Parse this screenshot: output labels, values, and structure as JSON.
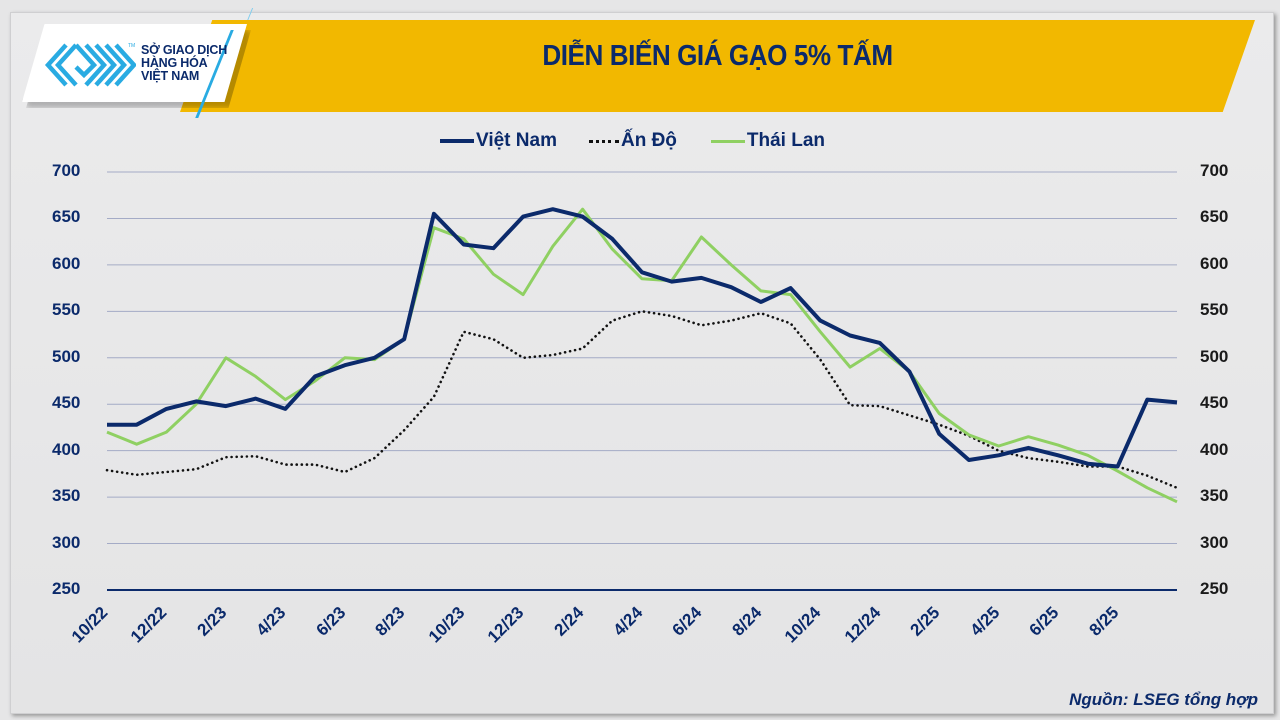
{
  "header": {
    "logo_text_lines": [
      "SỞ GIAO DỊCH",
      "HÀNG HÓA",
      "VIỆT NAM"
    ],
    "logo_tm": "TM",
    "title": "DIỄN BIẾN GIÁ GẠO 5% TẤM"
  },
  "colors": {
    "banner": "#f2b800",
    "navy": "#0b2a6b",
    "vietnam_line": "#0b2a6b",
    "india_line": "#111111",
    "thailand_line": "#8fd062",
    "grid": "#a4abc6",
    "logo_blue": "#29abe2"
  },
  "legend": [
    {
      "name": "Việt Nam",
      "style": "solid",
      "color": "#0b2a6b"
    },
    {
      "name": "Ấn Độ",
      "style": "dotted",
      "color": "#111111"
    },
    {
      "name": "Thái Lan",
      "style": "solid",
      "color": "#8fd062"
    }
  ],
  "footer": {
    "source": "Nguồn: LSEG tổng hợp"
  },
  "chart_data": {
    "type": "line",
    "title": "DIỄN BIẾN GIÁ GẠO 5% TẤM",
    "xlabel": "",
    "ylabel": "",
    "ylim": [
      250,
      700
    ],
    "yticks": [
      700,
      650,
      600,
      550,
      500,
      450,
      400,
      350,
      300,
      250
    ],
    "y_axis_left": true,
    "y_axis_right": true,
    "grid": true,
    "legend_position": "top",
    "x_tick_labels": [
      "10/22",
      "12/22",
      "2/23",
      "4/23",
      "6/23",
      "8/23",
      "10/23",
      "12/23",
      "2/24",
      "4/24",
      "6/24",
      "8/24",
      "10/24",
      "12/24",
      "2/25",
      "4/25",
      "6/25",
      "8/25"
    ],
    "x": [
      "10/22",
      "11/22",
      "12/22",
      "1/23",
      "2/23",
      "3/23",
      "4/23",
      "5/23",
      "6/23",
      "7/23",
      "8/23",
      "9/23",
      "10/23",
      "11/23",
      "12/23",
      "1/24",
      "2/24",
      "3/24",
      "4/24",
      "5/24",
      "6/24",
      "7/24",
      "8/24",
      "9/24",
      "10/24",
      "11/24",
      "12/24",
      "1/25",
      "2/25",
      "3/25",
      "4/25",
      "5/25",
      "6/25",
      "7/25",
      "8/25",
      "9/25",
      "10/25"
    ],
    "series": [
      {
        "name": "Việt Nam",
        "values": [
          428,
          428,
          445,
          453,
          448,
          456,
          445,
          480,
          492,
          500,
          520,
          655,
          622,
          618,
          652,
          660,
          652,
          628,
          592,
          582,
          586,
          576,
          560,
          575,
          540,
          524,
          516,
          485,
          418,
          390,
          395,
          403,
          395,
          386,
          383,
          455,
          452
        ]
      },
      {
        "name": "Ấn Độ",
        "values": [
          379,
          374,
          377,
          380,
          393,
          394,
          385,
          385,
          377,
          392,
          422,
          458,
          528,
          520,
          500,
          503,
          510,
          540,
          550,
          545,
          535,
          540,
          548,
          537,
          498,
          449,
          448,
          438,
          428,
          416,
          400,
          392,
          388,
          383,
          383,
          373,
          360
        ]
      },
      {
        "name": "Thái Lan",
        "values": [
          420,
          407,
          420,
          450,
          500,
          480,
          455,
          475,
          500,
          498,
          520,
          640,
          628,
          590,
          568,
          620,
          660,
          617,
          585,
          583,
          630,
          600,
          572,
          568,
          528,
          490,
          510,
          485,
          440,
          417,
          405,
          415,
          406,
          395,
          378,
          360,
          345
        ]
      }
    ]
  }
}
